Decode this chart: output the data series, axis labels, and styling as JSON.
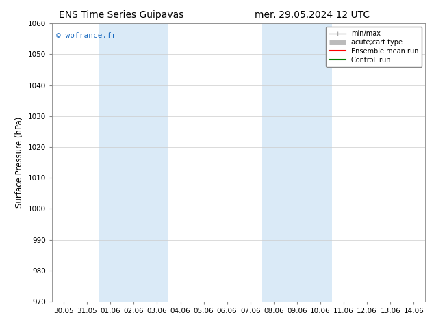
{
  "title_left": "ENS Time Series Guipavas",
  "title_right": "mer. 29.05.2024 12 UTC",
  "ylabel": "Surface Pressure (hPa)",
  "ylim": [
    970,
    1060
  ],
  "yticks": [
    970,
    980,
    990,
    1000,
    1010,
    1020,
    1030,
    1040,
    1050,
    1060
  ],
  "xtick_labels": [
    "30.05",
    "31.05",
    "01.06",
    "02.06",
    "03.06",
    "04.06",
    "05.06",
    "06.06",
    "07.06",
    "08.06",
    "09.06",
    "10.06",
    "11.06",
    "12.06",
    "13.06",
    "14.06"
  ],
  "shaded_regions": [
    {
      "x_start": "01.06",
      "x_end": "03.06"
    },
    {
      "x_start": "08.06",
      "x_end": "10.06"
    }
  ],
  "shaded_color": "#daeaf7",
  "watermark": "© wofrance.fr",
  "watermark_color": "#1a6abf",
  "legend_entries": [
    {
      "label": "min/max",
      "color": "#aaaaaa",
      "lw": 1.0,
      "style": "errorbar"
    },
    {
      "label": "acute;cart type",
      "color": "#bbbbbb",
      "lw": 5,
      "style": "thick"
    },
    {
      "label": "Ensemble mean run",
      "color": "red",
      "lw": 1.5,
      "style": "line"
    },
    {
      "label": "Controll run",
      "color": "green",
      "lw": 1.5,
      "style": "line"
    }
  ],
  "bg_color": "#ffffff",
  "grid_color": "#cccccc",
  "title_fontsize": 10,
  "tick_fontsize": 7.5,
  "ylabel_fontsize": 8.5,
  "watermark_fontsize": 8,
  "legend_fontsize": 7
}
